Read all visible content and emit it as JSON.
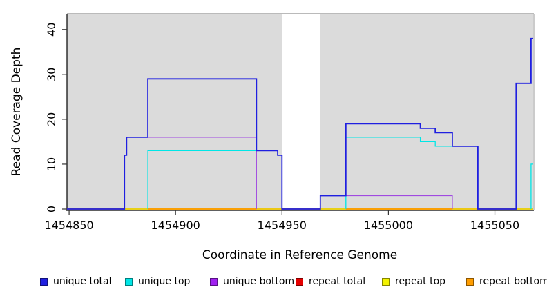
{
  "chart_data": {
    "type": "line",
    "subtype": "step-coverage",
    "title": "",
    "xlabel": "Coordinate in Reference Genome",
    "ylabel": "Read Coverage Depth",
    "xlim": [
      1454849,
      1455068
    ],
    "ylim": [
      0,
      43.5
    ],
    "x_ticks": [
      1454850,
      1454900,
      1454950,
      1455000,
      1455050
    ],
    "y_ticks": [
      0,
      10,
      20,
      30,
      40
    ],
    "grid": false,
    "panel_bg": "#dbdbdb",
    "unshaded_region": {
      "x0": 1454950,
      "x1": 1454968,
      "color": "#ffffff"
    },
    "legend_position": "bottom",
    "series": [
      {
        "name": "repeat total",
        "color": "#e60000",
        "width": 1.4,
        "segments": [
          [
            [
              1454849,
              0
            ],
            [
              1455068,
              0
            ]
          ]
        ]
      },
      {
        "name": "repeat top",
        "color": "#f2f200",
        "width": 1.4,
        "segments": [
          [
            [
              1454849,
              0
            ],
            [
              1455068,
              0
            ]
          ]
        ]
      },
      {
        "name": "repeat bottom",
        "color": "#ff9d00",
        "width": 1.6,
        "segments": [
          [
            [
              1454887,
              0
            ],
            [
              1454938,
              0
            ]
          ],
          [
            [
              1454980,
              0
            ],
            [
              1455030,
              0
            ]
          ]
        ]
      },
      {
        "name": "unique bottom",
        "color": "#a04ae0",
        "width": 1.3,
        "segments": [
          [
            [
              1454876,
              0
            ],
            [
              1454876,
              12
            ],
            [
              1454877,
              12
            ],
            [
              1454877,
              16
            ],
            [
              1454938,
              16
            ],
            [
              1454938,
              0
            ]
          ],
          [
            [
              1454968,
              0
            ],
            [
              1454968,
              3
            ],
            [
              1455030,
              3
            ],
            [
              1455030,
              0
            ]
          ]
        ]
      },
      {
        "name": "unique top",
        "color": "#00e6e6",
        "width": 1.3,
        "segments": [
          [
            [
              1454887,
              0
            ],
            [
              1454887,
              13
            ],
            [
              1454948,
              13
            ],
            [
              1454948,
              12
            ],
            [
              1454950,
              12
            ],
            [
              1454950,
              0
            ]
          ],
          [
            [
              1454980,
              0
            ],
            [
              1454980,
              16
            ],
            [
              1455015,
              16
            ],
            [
              1455015,
              15
            ],
            [
              1455022,
              15
            ],
            [
              1455022,
              14
            ],
            [
              1455042,
              14
            ],
            [
              1455042,
              0
            ]
          ],
          [
            [
              1455067,
              0
            ],
            [
              1455067,
              10
            ],
            [
              1455068,
              10
            ]
          ]
        ]
      },
      {
        "name": "unique total",
        "color": "#1f1fe0",
        "width": 1.8,
        "segments": [
          [
            [
              1454849,
              0
            ],
            [
              1454876,
              0
            ],
            [
              1454876,
              12
            ],
            [
              1454877,
              12
            ],
            [
              1454877,
              16
            ],
            [
              1454887,
              16
            ],
            [
              1454887,
              29
            ],
            [
              1454938,
              29
            ],
            [
              1454938,
              13
            ],
            [
              1454948,
              13
            ],
            [
              1454948,
              12
            ],
            [
              1454950,
              12
            ],
            [
              1454950,
              0
            ],
            [
              1454968,
              0
            ],
            [
              1454968,
              3
            ],
            [
              1454980,
              3
            ],
            [
              1454980,
              19
            ],
            [
              1455015,
              19
            ],
            [
              1455015,
              18
            ],
            [
              1455022,
              18
            ],
            [
              1455022,
              17
            ],
            [
              1455030,
              17
            ],
            [
              1455030,
              14
            ],
            [
              1455042,
              14
            ],
            [
              1455042,
              0
            ],
            [
              1455060,
              0
            ],
            [
              1455060,
              28
            ],
            [
              1455067,
              28
            ],
            [
              1455067,
              38
            ],
            [
              1455068,
              38
            ]
          ]
        ]
      }
    ],
    "baseline_segments": [
      {
        "x0": 1454849,
        "x1": 1454876,
        "color": "#544ae0"
      },
      {
        "x0": 1454876,
        "x1": 1454887,
        "color": "#86db86"
      },
      {
        "x0": 1454887,
        "x1": 1454938,
        "color": "#ff9d00"
      },
      {
        "x0": 1454938,
        "x1": 1454950,
        "color": "#cf5575"
      },
      {
        "x0": 1454950,
        "x1": 1454968,
        "color": "#544ae0"
      },
      {
        "x0": 1454968,
        "x1": 1454980,
        "color": "#86db86"
      },
      {
        "x0": 1454980,
        "x1": 1455030,
        "color": "#ff9d00"
      },
      {
        "x0": 1455030,
        "x1": 1455042,
        "color": "#cf5575"
      },
      {
        "x0": 1455042,
        "x1": 1455060,
        "color": "#544ae0"
      },
      {
        "x0": 1455060,
        "x1": 1455068,
        "color": "#86db86"
      }
    ]
  },
  "legend": {
    "items": [
      {
        "label": "unique total",
        "color": "#1f1fe0"
      },
      {
        "label": "unique top",
        "color": "#00e6e6"
      },
      {
        "label": "unique bottom",
        "color": "#a020f0"
      },
      {
        "label": "repeat total",
        "color": "#e60000"
      },
      {
        "label": "repeat top",
        "color": "#f2f200"
      },
      {
        "label": "repeat bottom",
        "color": "#ff9d00"
      }
    ]
  }
}
